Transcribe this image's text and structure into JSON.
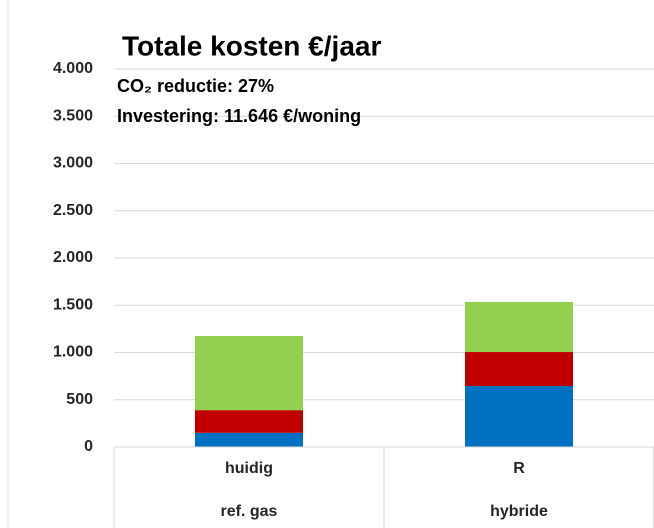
{
  "chart_data": {
    "type": "stacked_bar",
    "title": "Totale kosten €/jaar",
    "annotations": [
      "CO₂ reductie: 27%",
      "Investering: 11.646 €/woning"
    ],
    "categories": [
      "huidig",
      "R"
    ],
    "subcategories": [
      "ref. gas",
      "hybride"
    ],
    "series": [
      {
        "color": "#0070c0",
        "values": [
          150,
          645
        ]
      },
      {
        "color": "#c00000",
        "values": [
          240,
          360
        ]
      },
      {
        "color": "#92d050",
        "values": [
          785,
          530
        ]
      }
    ],
    "ylim": [
      0,
      4000
    ],
    "yticks": [
      0,
      500,
      {
        "value": 1000,
        "label": "1.000"
      },
      {
        "value": 1500,
        "label": "1.500"
      },
      {
        "value": 2000,
        "label": "2.000"
      },
      {
        "value": 2500,
        "label": "2.500"
      },
      {
        "value": 3000,
        "label": "3.000"
      },
      {
        "value": 3500,
        "label": "3.500"
      },
      {
        "value": 4000,
        "label": "4.000"
      }
    ],
    "grid": true
  }
}
